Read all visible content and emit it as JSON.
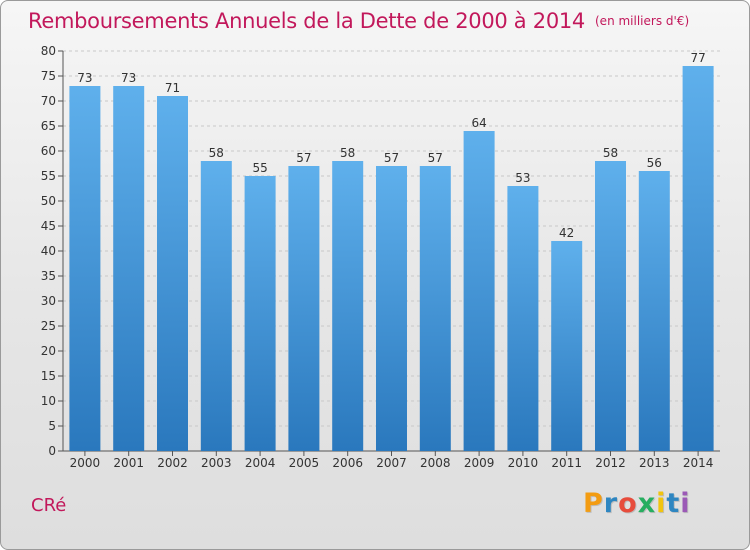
{
  "chart_data": {
    "type": "bar",
    "title": "Remboursements Annuels de la Dette de 2000 à 2014",
    "subtitle": "(en milliers d'€)",
    "categories": [
      "2000",
      "2001",
      "2002",
      "2003",
      "2004",
      "2005",
      "2006",
      "2007",
      "2008",
      "2009",
      "2010",
      "2011",
      "2012",
      "2013",
      "2014"
    ],
    "values": [
      73,
      73,
      71,
      58,
      55,
      57,
      58,
      57,
      57,
      64,
      53,
      42,
      58,
      56,
      77
    ],
    "ylim": [
      0,
      80
    ],
    "yticks": [
      0,
      5,
      10,
      15,
      20,
      25,
      30,
      35,
      40,
      45,
      50,
      55,
      60,
      65,
      70,
      75,
      80
    ],
    "grid": "horizontal dashed",
    "bar_color_top": "#5fb0ec",
    "bar_color_bottom": "#2a78bd",
    "data_labels": true
  },
  "footer": {
    "place_name": "CRé",
    "logo_text": "Proxiti",
    "logo_colors": [
      "#f39c12",
      "#2e86c1",
      "#e74c3c",
      "#27ae60",
      "#f1c40f",
      "#2e86c1",
      "#9b59b6"
    ]
  },
  "colors": {
    "title": "#c2185b",
    "axis": "#333333"
  }
}
